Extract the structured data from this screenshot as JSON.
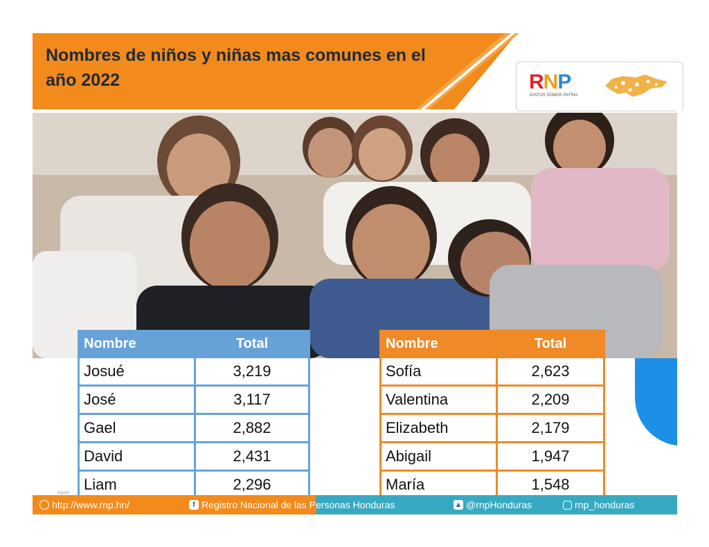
{
  "title": "Nombres de niños y niñas mas comunes en el año 2022",
  "logos": {
    "rnp": "RNP",
    "rnp_tagline": "JUNTOS SOMOS PATRIA",
    "map_icon": "honduras-map-icon"
  },
  "boys_table": {
    "headers": [
      "Nombre",
      "Total"
    ],
    "rows": [
      [
        "Josué",
        "3,219"
      ],
      [
        "José",
        "3,117"
      ],
      [
        "Gael",
        "2,882"
      ],
      [
        "David",
        "2,431"
      ],
      [
        "Liam",
        "2,296"
      ]
    ]
  },
  "girls_table": {
    "headers": [
      "Nombre",
      "Total"
    ],
    "rows": [
      [
        "Sofía",
        "2,623"
      ],
      [
        "Valentina",
        "2,209"
      ],
      [
        "Elizabeth",
        "2,179"
      ],
      [
        "Abigail",
        "1,947"
      ],
      [
        "María",
        "1,548"
      ]
    ]
  },
  "footer": {
    "siguen": "Siguen",
    "website": "http://www.rnp.hn/",
    "facebook": "Registro Nacional de las Personas Honduras",
    "twitter": "@rnpHonduras",
    "instagram": "rnp_honduras"
  },
  "colors": {
    "orange": "#f28a1c",
    "blue_table": "#66a2d8",
    "teal_footer": "#38a9c2"
  }
}
